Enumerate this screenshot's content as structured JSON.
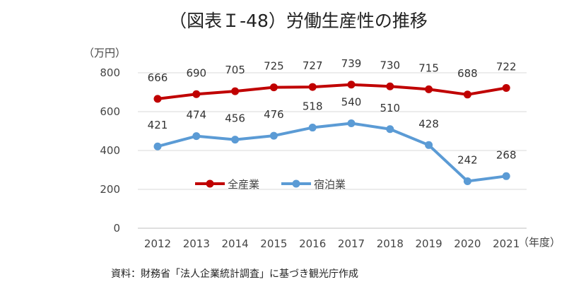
{
  "chart_data": {
    "type": "line",
    "title": "（図表Ｉ-48）労働生産性の推移",
    "ylabel": "（万円）",
    "xlabel": "（年度）",
    "categories": [
      "2012",
      "2013",
      "2014",
      "2015",
      "2016",
      "2017",
      "2018",
      "2019",
      "2020",
      "2021"
    ],
    "ylim": [
      0,
      800
    ],
    "yticks": [
      "0",
      "200",
      "400",
      "600",
      "800"
    ],
    "grid": true,
    "legend_position": "center-left",
    "series": [
      {
        "name": "全産業",
        "color": "#C00000",
        "values": [
          666,
          690,
          705,
          725,
          727,
          739,
          730,
          715,
          688,
          722
        ]
      },
      {
        "name": "宿泊業",
        "color": "#5B9BD5",
        "values": [
          421,
          474,
          456,
          476,
          518,
          540,
          510,
          428,
          242,
          268
        ]
      }
    ],
    "source": "資料：財務省「法人企業統計調査」に基づき観光庁作成"
  }
}
